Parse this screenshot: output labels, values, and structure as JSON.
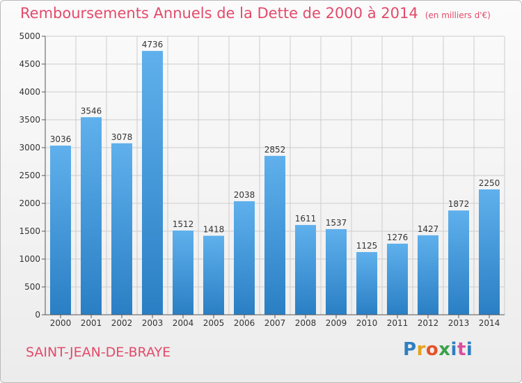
{
  "chart_data": {
    "type": "bar",
    "title": "Remboursements Annuels de la Dette de 2000 à 2014",
    "unit": "(en milliers d'€)",
    "categories": [
      "2000",
      "2001",
      "2002",
      "2003",
      "2004",
      "2005",
      "2006",
      "2007",
      "2008",
      "2009",
      "2010",
      "2011",
      "2012",
      "2013",
      "2014"
    ],
    "values": [
      3036,
      3546,
      3078,
      4736,
      1512,
      1418,
      2038,
      2852,
      1611,
      1537,
      1125,
      1276,
      1427,
      1872,
      2250
    ],
    "yticks": [
      0,
      500,
      1000,
      1500,
      2000,
      2500,
      3000,
      3500,
      4000,
      4500,
      5000
    ],
    "ylim": [
      0,
      5000
    ],
    "grid": true,
    "xlabel": "",
    "ylabel": ""
  },
  "city": "SAINT-JEAN-DE-BRAYE",
  "logo": {
    "letters": [
      "P",
      "r",
      "o",
      "x",
      "i",
      "t",
      "i"
    ],
    "text": "Proxiti"
  },
  "colors": {
    "accent": "#e34a6a",
    "bar_top": "#5fb0ec",
    "bar_bottom": "#2a7fc4",
    "grid": "#cccccc"
  }
}
